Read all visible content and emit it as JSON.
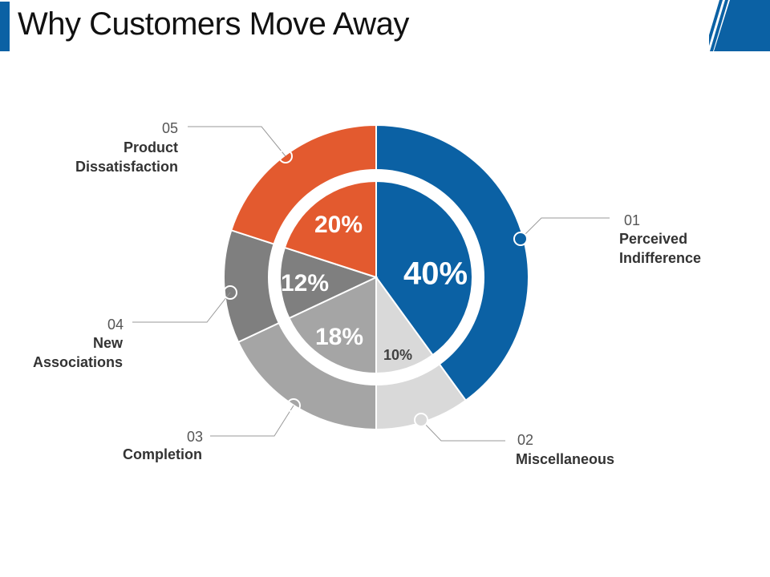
{
  "title": "Why Customers Move Away",
  "colors": {
    "accent": "#0b61a4",
    "orange": "#e35a2f",
    "dark_gray": "#7f7f7f",
    "mid_gray": "#a5a5a5",
    "light_gray": "#d9d9d9"
  },
  "chart_data": {
    "type": "pie",
    "title": "Why Customers Move Away",
    "categories": [
      "Perceived Indifference",
      "Miscellaneous",
      "Completion",
      "New Associations",
      "Product Dissatisfaction"
    ],
    "values": [
      40,
      10,
      18,
      12,
      20
    ],
    "value_labels": [
      "40%",
      "10%",
      "18%",
      "12%",
      "20%"
    ],
    "numbers": [
      "01",
      "02",
      "03",
      "04",
      "05"
    ],
    "label_lines": [
      [
        "Perceived",
        "Indifference"
      ],
      [
        "Miscellaneous"
      ],
      [
        "Completion"
      ],
      [
        "New",
        "Associations"
      ],
      [
        "Product",
        "Dissatisfaction"
      ]
    ],
    "colors": [
      "#0b61a4",
      "#d9d9d9",
      "#a5a5a5",
      "#7f7f7f",
      "#e35a2f"
    ]
  }
}
